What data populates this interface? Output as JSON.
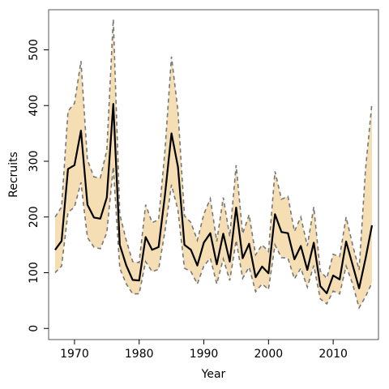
{
  "chart_data": {
    "type": "line",
    "title": "",
    "xlabel": "Year",
    "ylabel": "Recruits",
    "xlim": [
      1966,
      2017
    ],
    "ylim": [
      -20,
      572
    ],
    "xticks": [
      1970,
      1980,
      1990,
      2000,
      2010
    ],
    "yticks": [
      0,
      100,
      200,
      300,
      400,
      500
    ],
    "grid": false,
    "legend": "none",
    "colors": {
      "band": "#F5DEB3",
      "line": "#000000",
      "dashed": "#777777",
      "frame": "#555555"
    },
    "x": [
      1967,
      1968,
      1969,
      1970,
      1971,
      1972,
      1973,
      1974,
      1975,
      1976,
      1977,
      1978,
      1979,
      1980,
      1981,
      1982,
      1983,
      1984,
      1985,
      1986,
      1987,
      1988,
      1989,
      1990,
      1991,
      1992,
      1993,
      1994,
      1995,
      1996,
      1997,
      1998,
      1999,
      2000,
      2001,
      2002,
      2003,
      2004,
      2005,
      2006,
      2007,
      2008,
      2009,
      2010,
      2011,
      2012,
      2013,
      2014,
      2015,
      2016
    ],
    "series": [
      {
        "role": "estimate",
        "values": [
          141,
          157,
          286,
          293,
          355,
          222,
          199,
          197,
          235,
          403,
          150,
          113,
          87,
          86,
          164,
          141,
          146,
          240,
          350,
          290,
          150,
          141,
          113,
          154,
          171,
          115,
          170,
          120,
          217,
          126,
          152,
          92,
          111,
          99,
          205,
          173,
          171,
          124,
          148,
          105,
          154,
          76,
          63,
          95,
          88,
          156,
          114,
          72,
          125,
          185
        ]
      },
      {
        "role": "upper",
        "values": [
          200,
          218,
          390,
          404,
          480,
          302,
          272,
          270,
          320,
          555,
          205,
          158,
          120,
          118,
          222,
          190,
          195,
          320,
          488,
          390,
          202,
          190,
          158,
          205,
          233,
          156,
          235,
          165,
          293,
          170,
          204,
          132,
          150,
          138,
          282,
          232,
          237,
          174,
          200,
          148,
          218,
          103,
          90,
          133,
          129,
          200,
          150,
          105,
          285,
          405
        ]
      },
      {
        "role": "lower",
        "values": [
          100,
          112,
          208,
          218,
          262,
          163,
          146,
          143,
          172,
          290,
          108,
          80,
          62,
          62,
          120,
          102,
          106,
          175,
          258,
          212,
          108,
          102,
          80,
          112,
          126,
          80,
          125,
          86,
          158,
          90,
          110,
          66,
          80,
          70,
          150,
          127,
          126,
          89,
          108,
          74,
          113,
          53,
          44,
          67,
          62,
          112,
          80,
          37,
          57,
          82
        ]
      }
    ]
  }
}
